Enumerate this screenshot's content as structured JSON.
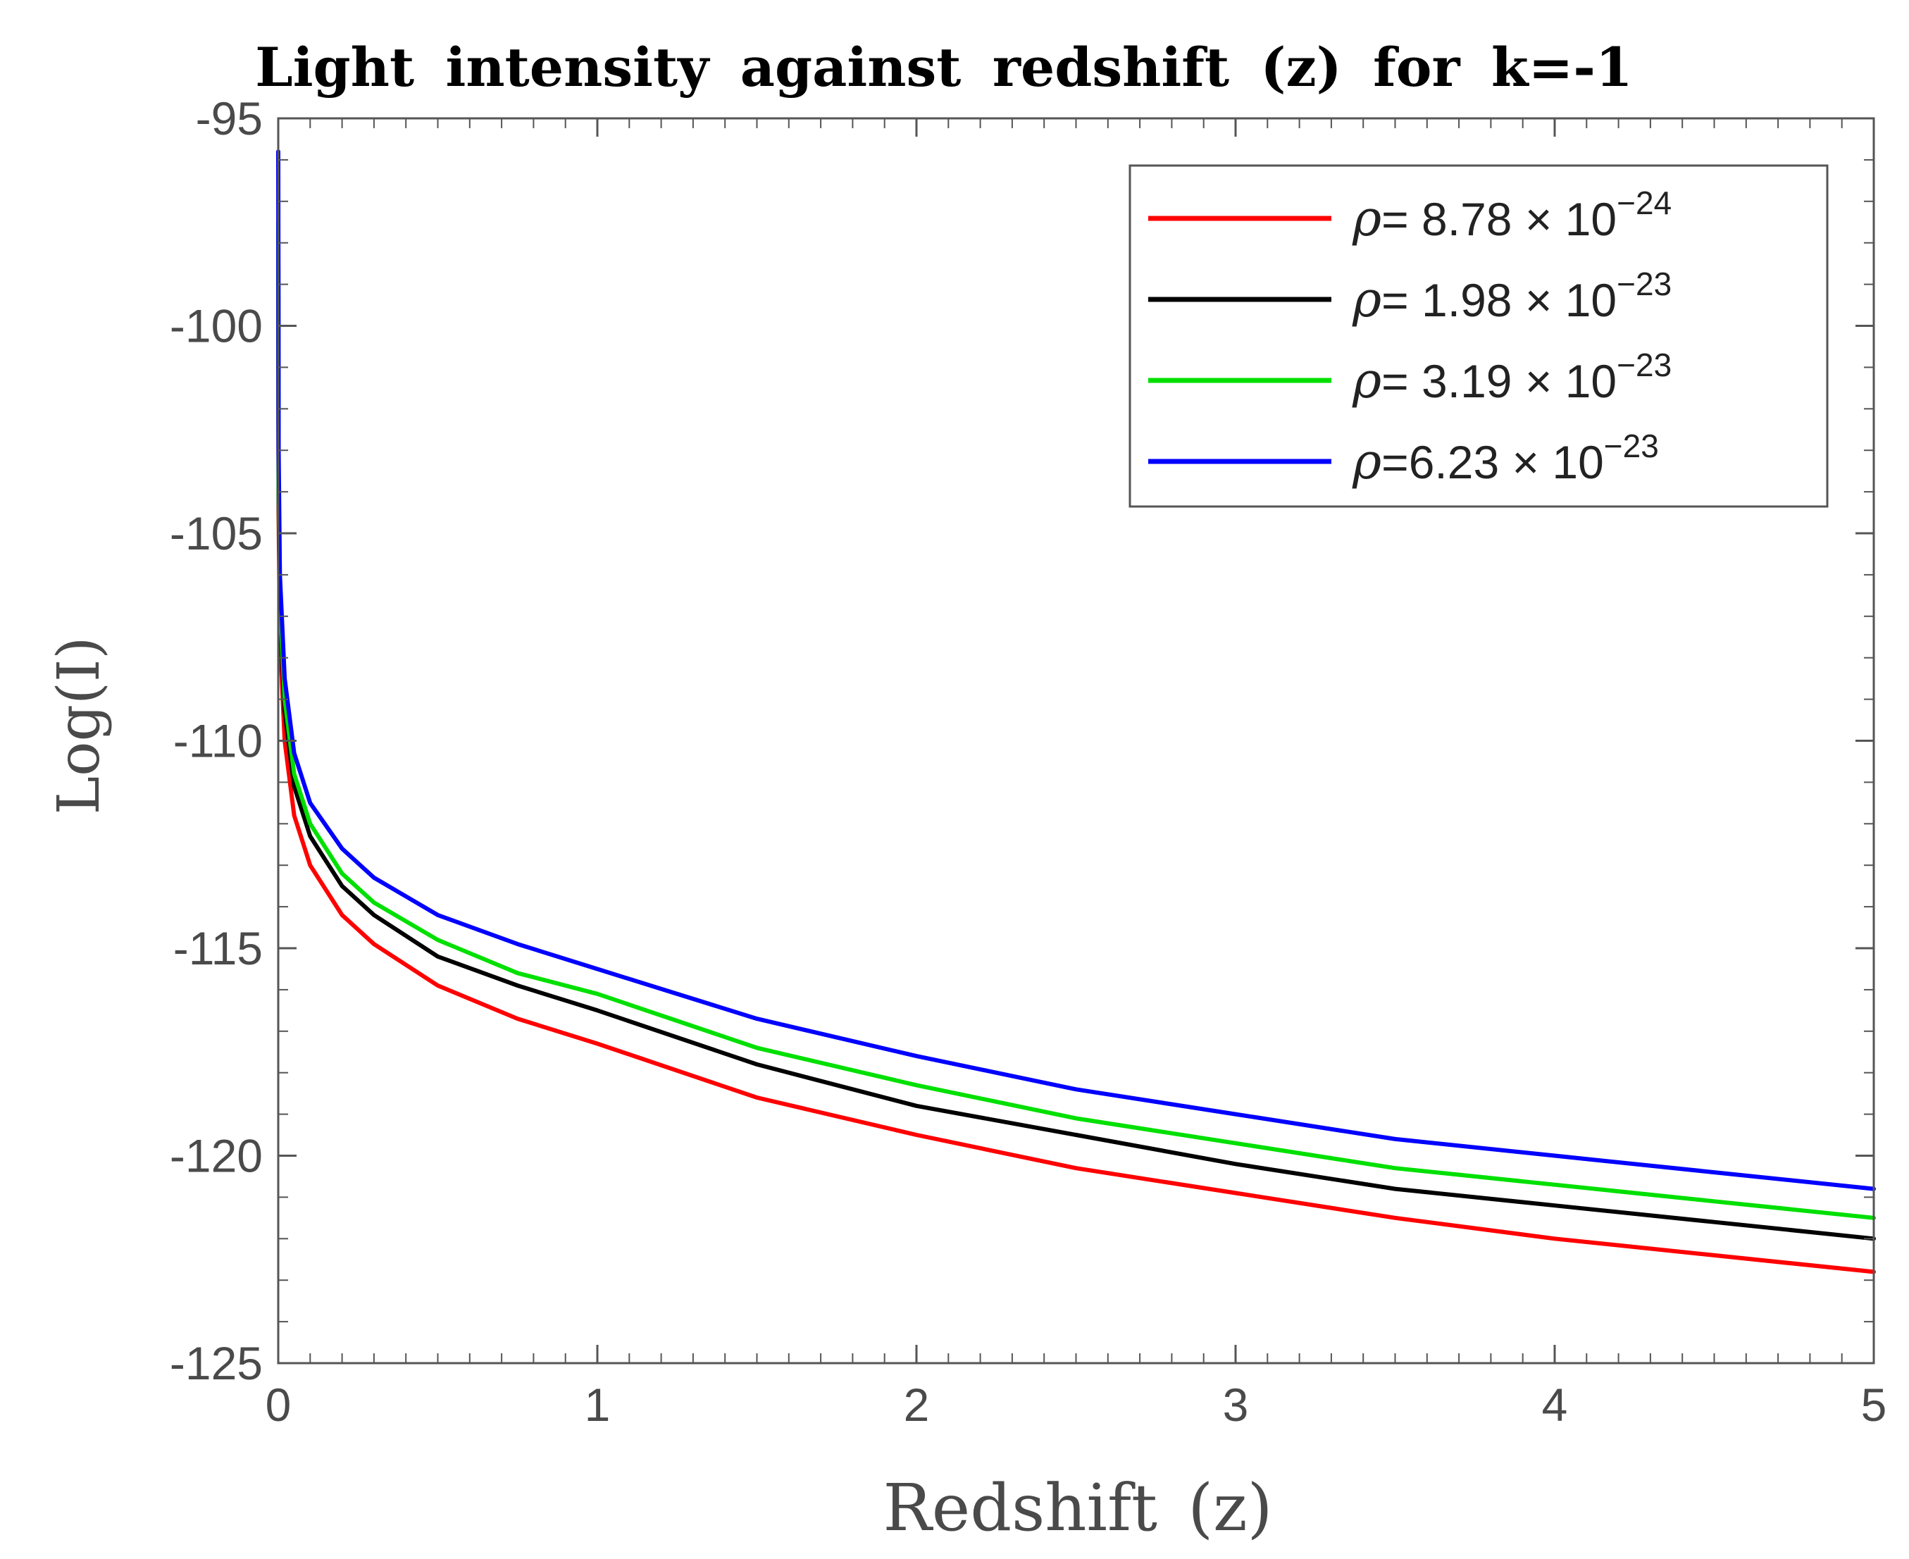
{
  "chart_data": {
    "type": "line",
    "title": "Light intensity against redshift (z) for k=-1",
    "xlabel": "Redshift (z)",
    "ylabel": "Log(I)",
    "xlim": [
      0,
      5
    ],
    "ylim": [
      -125,
      -95
    ],
    "xticks": [
      0,
      1,
      2,
      3,
      4,
      5
    ],
    "yticks": [
      -95,
      -100,
      -105,
      -110,
      -115,
      -120,
      -125
    ],
    "xtick_labels": [
      "0",
      "1",
      "2",
      "3",
      "4",
      "5"
    ],
    "ytick_labels": [
      "-95",
      "-100",
      "-105",
      "-110",
      "-115",
      "-120",
      "-125"
    ],
    "grid": false,
    "legend_position": "top-right",
    "series": [
      {
        "name": "ρ= 8.78 × 10^-24",
        "legend_main": "= 8.78 × 10",
        "legend_exp": "−24",
        "color": "#ff0000",
        "x": [
          0.0001,
          0.001,
          0.005,
          0.02,
          0.05,
          0.1,
          0.2,
          0.3,
          0.5,
          0.75,
          1.0,
          1.5,
          2.0,
          2.5,
          3.0,
          3.5,
          4.0,
          4.5,
          5.0
        ],
        "y": [
          -98.5,
          -104.5,
          -107.5,
          -110.0,
          -111.8,
          -113.0,
          -114.2,
          -114.9,
          -115.9,
          -116.7,
          -117.3,
          -118.6,
          -119.5,
          -120.3,
          -120.9,
          -121.5,
          -122.0,
          -122.4,
          -122.8
        ]
      },
      {
        "name": "ρ= 1.98 × 10^-23",
        "legend_main": "= 1.98 × 10",
        "legend_exp": "−23",
        "color": "#000000",
        "x": [
          0.0001,
          0.001,
          0.005,
          0.02,
          0.05,
          0.1,
          0.2,
          0.3,
          0.5,
          0.75,
          1.0,
          1.5,
          2.0,
          2.5,
          3.0,
          3.5,
          4.0,
          4.5,
          5.0
        ],
        "y": [
          -97.8,
          -104.0,
          -106.9,
          -109.3,
          -111.1,
          -112.3,
          -113.5,
          -114.2,
          -115.2,
          -115.9,
          -116.5,
          -117.8,
          -118.8,
          -119.5,
          -120.2,
          -120.8,
          -121.2,
          -121.6,
          -122.0
        ]
      },
      {
        "name": "ρ= 3.19 × 10^-23",
        "legend_main": "= 3.19 × 10",
        "legend_exp": "−23",
        "color": "#00e000",
        "x": [
          0.0001,
          0.001,
          0.005,
          0.02,
          0.05,
          0.1,
          0.2,
          0.3,
          0.5,
          0.75,
          1.0,
          1.5,
          2.0,
          2.5,
          3.0,
          3.5,
          4.0,
          4.5,
          5.0
        ],
        "y": [
          -97.5,
          -103.7,
          -106.6,
          -109.0,
          -110.8,
          -112.0,
          -113.2,
          -113.9,
          -114.8,
          -115.6,
          -116.1,
          -117.4,
          -118.3,
          -119.1,
          -119.7,
          -120.3,
          -120.7,
          -121.1,
          -121.5
        ]
      },
      {
        "name": "ρ=6.23 × 10^-23",
        "legend_main": "=6.23 × 10",
        "legend_exp": "−23",
        "color": "#0000ff",
        "x": [
          0.0001,
          0.001,
          0.005,
          0.02,
          0.05,
          0.1,
          0.2,
          0.3,
          0.5,
          0.75,
          1.0,
          1.5,
          2.0,
          2.5,
          3.0,
          3.5,
          4.0,
          4.5,
          5.0
        ],
        "y": [
          -95.8,
          -103.0,
          -106.0,
          -108.5,
          -110.3,
          -111.5,
          -112.6,
          -113.3,
          -114.2,
          -114.9,
          -115.5,
          -116.7,
          -117.6,
          -118.4,
          -119.0,
          -119.6,
          -120.0,
          -120.4,
          -120.8
        ]
      }
    ]
  }
}
